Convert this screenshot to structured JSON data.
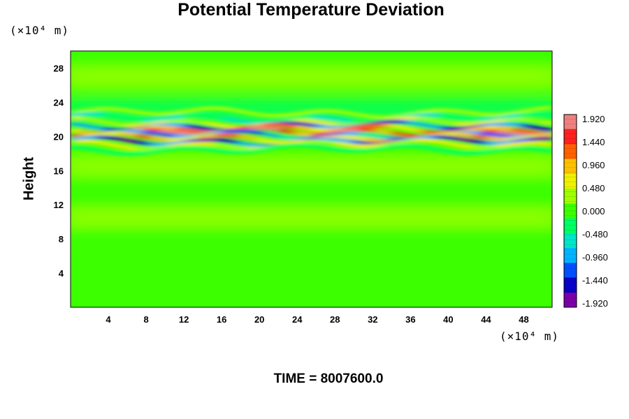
{
  "chart_data": {
    "type": "heatmap",
    "title": "Potential Temperature Deviation",
    "xlabel": "",
    "ylabel": "Height",
    "x_unit": "(×10⁴ m)",
    "y_unit": "(×10⁴ m)",
    "xlim": [
      0,
      51
    ],
    "ylim": [
      0,
      30
    ],
    "x_ticks": [
      4,
      8,
      12,
      16,
      20,
      24,
      28,
      32,
      36,
      40,
      44,
      48
    ],
    "y_ticks": [
      4,
      8,
      12,
      16,
      20,
      24,
      28
    ],
    "colorbar": {
      "range": [
        -1.92,
        1.92
      ],
      "tick_labels": [
        "1.920",
        "1.440",
        "0.960",
        "0.480",
        "0.000",
        "-0.480",
        "-0.960",
        "-1.440",
        "-1.920"
      ],
      "colors": [
        "#7b00a8",
        "#0a00c8",
        "#0050ff",
        "#00b4ff",
        "#00e6c8",
        "#00ff64",
        "#3cff00",
        "#a0ff00",
        "#f0f000",
        "#ffc000",
        "#ff6000",
        "#ff2020",
        "#f08080"
      ]
    },
    "background_value": 0.05,
    "features": [
      {
        "band_center_y": 20.5,
        "band_halfwidth_y": 0.9,
        "description_value_range": [
          -1.92,
          1.92
        ]
      },
      {
        "band_center_y": 23.0,
        "value": -0.3
      },
      {
        "band_center_y": 27.0,
        "value": 0.35
      },
      {
        "band_center_y": 16.5,
        "value": 0.15
      },
      {
        "band_center_y": 10.5,
        "value": 0.2
      }
    ]
  },
  "footer": {
    "time_label": "TIME = 8007600.0"
  }
}
